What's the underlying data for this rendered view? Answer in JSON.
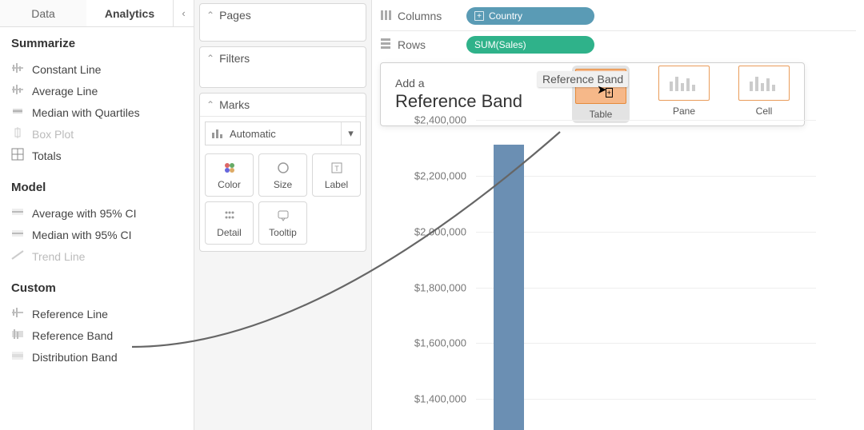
{
  "tabs": {
    "data": "Data",
    "analytics": "Analytics"
  },
  "sections": {
    "summarize": {
      "title": "Summarize",
      "items": [
        {
          "label": "Constant Line",
          "disabled": false
        },
        {
          "label": "Average Line",
          "disabled": false
        },
        {
          "label": "Median with Quartiles",
          "disabled": false
        },
        {
          "label": "Box Plot",
          "disabled": true
        },
        {
          "label": "Totals",
          "disabled": false
        }
      ]
    },
    "model": {
      "title": "Model",
      "items": [
        {
          "label": "Average with 95% CI",
          "disabled": false
        },
        {
          "label": "Median with 95% CI",
          "disabled": false
        },
        {
          "label": "Trend Line",
          "disabled": true
        }
      ]
    },
    "custom": {
      "title": "Custom",
      "items": [
        {
          "label": "Reference Line",
          "disabled": false
        },
        {
          "label": "Reference Band",
          "disabled": false
        },
        {
          "label": "Distribution Band",
          "disabled": false
        }
      ]
    }
  },
  "cards": {
    "pages": "Pages",
    "filters": "Filters",
    "marks": "Marks",
    "markType": "Automatic",
    "markCells": {
      "color": "Color",
      "size": "Size",
      "label": "Label",
      "detail": "Detail",
      "tooltip": "Tooltip"
    }
  },
  "shelves": {
    "columns": {
      "label": "Columns",
      "pill": "Country",
      "color": "blue"
    },
    "rows": {
      "label": "Rows",
      "pill": "SUM(Sales)",
      "color": "green"
    }
  },
  "drop": {
    "small": "Add a",
    "big": "Reference Band",
    "dragGhost": "Reference Band",
    "targets": [
      {
        "label": "Table",
        "active": true
      },
      {
        "label": "Pane",
        "active": false
      },
      {
        "label": "Cell",
        "active": false
      }
    ]
  },
  "chart": {
    "yTicks": [
      {
        "label": "$2,400,000",
        "pct": 0
      },
      {
        "label": "$2,200,000",
        "pct": 18
      },
      {
        "label": "$2,000,000",
        "pct": 36
      },
      {
        "label": "$1,800,000",
        "pct": 54
      },
      {
        "label": "$1,600,000",
        "pct": 72
      },
      {
        "label": "$1,400,000",
        "pct": 90
      }
    ],
    "barTopPct": 8,
    "barColor": "#6b8fb3"
  },
  "colors": {
    "pillBlue": "#5a9bb5",
    "pillGreen": "#2fb28a",
    "highlight": "#f6b889",
    "highlightBorder": "#e58a3a"
  }
}
